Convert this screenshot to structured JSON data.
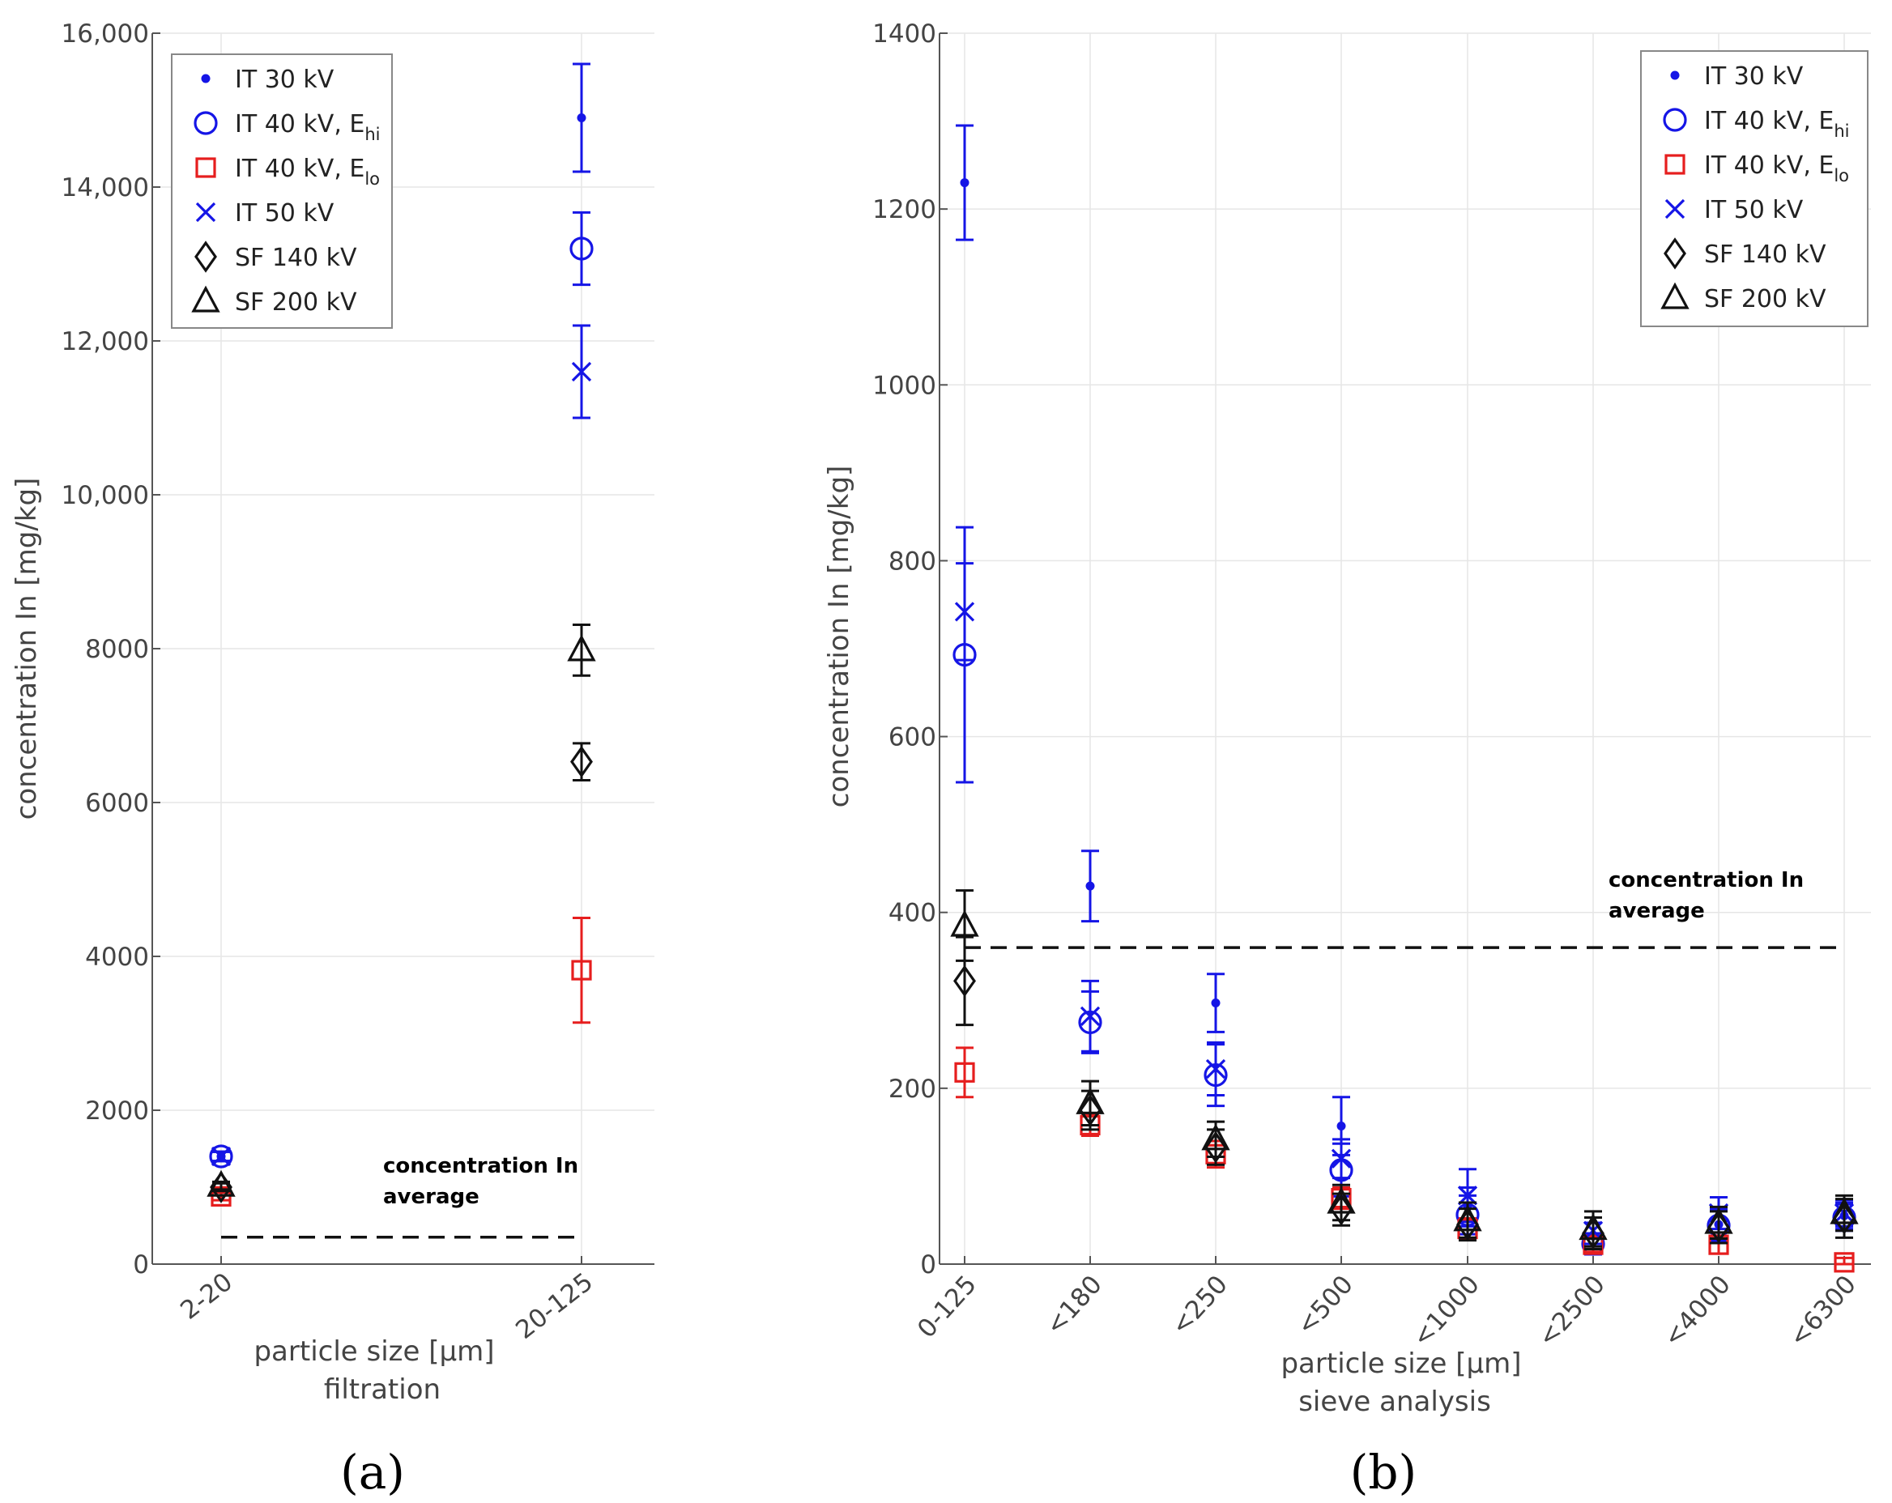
{
  "colors": {
    "blue": "#1515e6",
    "red": "#e61e1e",
    "black": "#111111",
    "grid": "#e6e6e6",
    "axis": "#555555"
  },
  "legend_entries": [
    {
      "key": "it30",
      "label": "IT 30 kV",
      "sub": "",
      "marker": "dot",
      "color": "#1515e6"
    },
    {
      "key": "it40h",
      "label": "IT 40 kV, E",
      "sub": "hi",
      "marker": "circle",
      "color": "#1515e6"
    },
    {
      "key": "it40l",
      "label": "IT 40 kV, E",
      "sub": "lo",
      "marker": "square",
      "color": "#e61e1e"
    },
    {
      "key": "it50",
      "label": "IT 50 kV",
      "sub": "",
      "marker": "x",
      "color": "#1515e6"
    },
    {
      "key": "sf140",
      "label": "SF 140 kV",
      "sub": "",
      "marker": "diamond",
      "color": "#111111"
    },
    {
      "key": "sf200",
      "label": "SF 200 kV",
      "sub": "",
      "marker": "triangle",
      "color": "#111111"
    }
  ],
  "chart_data": [
    {
      "panel": "a",
      "panel_label": "(a)",
      "type": "scatter",
      "xlabel": "particle size [µm]",
      "xlabel2": "filtration",
      "ylabel": "concentration In [mg/kg]",
      "ylim": [
        0,
        16000
      ],
      "yticks": [
        0,
        2000,
        4000,
        6000,
        8000,
        10000,
        12000,
        14000,
        16000
      ],
      "ytick_labels": [
        "0",
        "2000",
        "4000",
        "6000",
        "8000",
        "10,000",
        "12,000",
        "14,000",
        "16,000"
      ],
      "categories": [
        "2-20",
        "20-125"
      ],
      "average": {
        "value": 350,
        "label_line1": "concentration In",
        "label_line2": "average"
      },
      "series": [
        {
          "key": "it30",
          "values": [
            1400,
            14900
          ],
          "errors": [
            60,
            700
          ]
        },
        {
          "key": "it40h",
          "values": [
            1400,
            13200
          ],
          "errors": [
            60,
            470
          ]
        },
        {
          "key": "it40l",
          "values": [
            880,
            3820
          ],
          "errors": [
            50,
            680
          ]
        },
        {
          "key": "it50",
          "values": [
            1400,
            11600
          ],
          "errors": [
            60,
            600
          ]
        },
        {
          "key": "sf140",
          "values": [
            1000,
            6530
          ],
          "errors": [
            50,
            240
          ]
        },
        {
          "key": "sf200",
          "values": [
            1020,
            7980
          ],
          "errors": [
            50,
            330
          ]
        }
      ]
    },
    {
      "panel": "b",
      "panel_label": "(b)",
      "type": "scatter",
      "xlabel": "particle size [µm]",
      "xlabel2": "sieve analysis",
      "ylabel": "concentration In [mg/kg]",
      "ylim": [
        0,
        1400
      ],
      "yticks": [
        0,
        200,
        400,
        600,
        800,
        1000,
        1200,
        1400
      ],
      "ytick_labels": [
        "0",
        "200",
        "400",
        "600",
        "800",
        "1000",
        "1200",
        "1400"
      ],
      "categories": [
        "0-125",
        "<180",
        "<250",
        "<500",
        "<1000",
        "<2500",
        "<4000",
        "<6300"
      ],
      "average": {
        "value": 360,
        "label_line1": "concentration In",
        "label_line2": "average"
      },
      "series": [
        {
          "key": "it30",
          "values": [
            1230,
            430,
            297,
            157,
            65,
            32,
            45,
            55
          ],
          "errors": [
            65,
            40,
            33,
            33,
            22,
            15,
            18,
            15
          ]
        },
        {
          "key": "it40h",
          "values": [
            693,
            275,
            215,
            107,
            56,
            23,
            44,
            53
          ],
          "errors": [
            145,
            35,
            35,
            30,
            22,
            12,
            18,
            15
          ]
        },
        {
          "key": "it40l",
          "values": [
            218,
            158,
            125,
            75,
            40,
            22,
            22,
            2
          ],
          "errors": [
            28,
            12,
            15,
            12,
            12,
            8,
            10,
            5
          ]
        },
        {
          "key": "it50",
          "values": [
            742,
            282,
            222,
            120,
            78,
            38,
            58,
            58
          ],
          "errors": [
            55,
            40,
            30,
            22,
            30,
            15,
            18,
            15
          ]
        },
        {
          "key": "sf140",
          "values": [
            322,
            175,
            133,
            62,
            45,
            35,
            42,
            52
          ],
          "errors": [
            50,
            22,
            20,
            18,
            18,
            18,
            18,
            22
          ]
        },
        {
          "key": "sf200",
          "values": [
            385,
            183,
            142,
            70,
            50,
            40,
            47,
            58
          ],
          "errors": [
            40,
            25,
            20,
            20,
            20,
            20,
            18,
            20
          ]
        }
      ]
    }
  ]
}
